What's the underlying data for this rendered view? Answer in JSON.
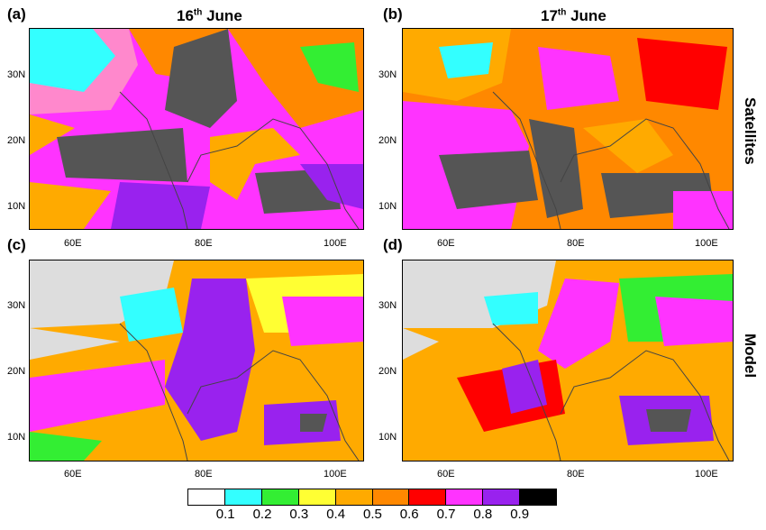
{
  "figure": {
    "panels": [
      {
        "id": "a",
        "label": "(a)",
        "date_main": "16",
        "date_sup": "th",
        "date_rest": " June",
        "row": "satellites"
      },
      {
        "id": "b",
        "label": "(b)",
        "date_main": "17",
        "date_sup": "th",
        "date_rest": " June",
        "row": "satellites"
      },
      {
        "id": "c",
        "label": "(c)",
        "row": "model"
      },
      {
        "id": "d",
        "label": "(d)",
        "row": "model"
      }
    ],
    "row_labels": {
      "satellites": "Satellites",
      "model": "Model"
    },
    "lat_ticks": [
      "10N",
      "20N",
      "30N"
    ],
    "lon_ticks": [
      "60E",
      "80E",
      "100E"
    ],
    "colorbar": {
      "colors": [
        "#ffffff",
        "#33ffff",
        "#33ee33",
        "#ffff33",
        "#ffaa00",
        "#ff8800",
        "#ff0000",
        "#ff33ff",
        "#9922ee",
        "#000000"
      ],
      "labels": [
        "0.1",
        "0.2",
        "0.3",
        "0.4",
        "0.5",
        "0.6",
        "0.7",
        "0.8",
        "0.9"
      ]
    },
    "land_color": "#dddddd",
    "coast_color": "#444444"
  }
}
